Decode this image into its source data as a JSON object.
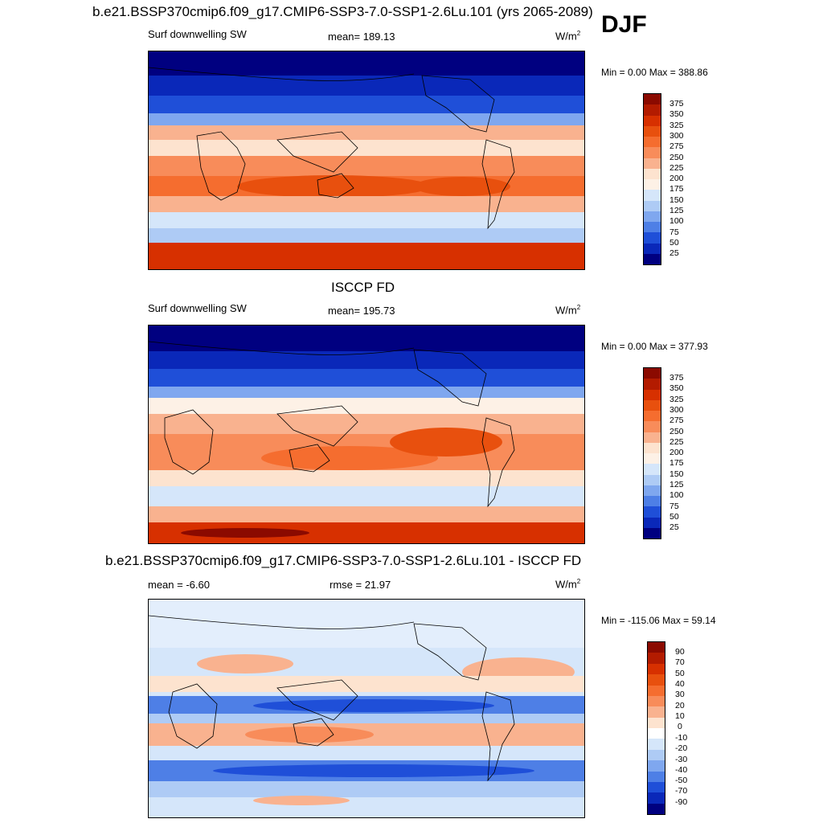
{
  "season": "DJF",
  "panels": [
    {
      "title": "b.e21.BSSP370cmip6.f09_g17.CMIP6-SSP3-7.0-SSP1-2.6Lu.101 (yrs 2065-2089)",
      "left_label": "Surf downwelling SW",
      "center_label": "mean= 189.13",
      "units": "W/m",
      "units_sup": "2",
      "minmax": "Min =   0.00 Max = 388.86",
      "colorbar": {
        "labels": [
          "375",
          "350",
          "325",
          "300",
          "275",
          "250",
          "225",
          "200",
          "175",
          "150",
          "125",
          "100",
          "75",
          "50",
          "25"
        ],
        "colors": [
          "#8b0a00",
          "#b31b00",
          "#d73000",
          "#e8500e",
          "#f56d2f",
          "#f88c5a",
          "#f9b28f",
          "#fde3cf",
          "#fdf1e6",
          "#d5e6fa",
          "#aecbf5",
          "#7fa7ef",
          "#4e7fe6",
          "#1f4fd8",
          "#0a28b9",
          "#000080"
        ]
      }
    },
    {
      "title": "ISCCP FD",
      "left_label": "Surf downwelling SW",
      "center_label": "mean= 195.73",
      "units": "W/m",
      "units_sup": "2",
      "minmax": "Min =   0.00 Max = 377.93",
      "colorbar": {
        "labels": [
          "375",
          "350",
          "325",
          "300",
          "275",
          "250",
          "225",
          "200",
          "175",
          "150",
          "125",
          "100",
          "75",
          "50",
          "25"
        ],
        "colors": [
          "#8b0a00",
          "#b31b00",
          "#d73000",
          "#e8500e",
          "#f56d2f",
          "#f88c5a",
          "#f9b28f",
          "#fde3cf",
          "#fdf1e6",
          "#d5e6fa",
          "#aecbf5",
          "#7fa7ef",
          "#4e7fe6",
          "#1f4fd8",
          "#0a28b9",
          "#000080"
        ]
      }
    },
    {
      "title": "b.e21.BSSP370cmip6.f09_g17.CMIP6-SSP3-7.0-SSP1-2.6Lu.101 - ISCCP FD",
      "left_label": "mean =  -6.60",
      "center_label": "rmse =  21.97",
      "units": "W/m",
      "units_sup": "2",
      "minmax": "Min = -115.06 Max =  59.14",
      "colorbar": {
        "labels": [
          "90",
          "70",
          "50",
          "40",
          "30",
          "20",
          "10",
          "0",
          "-10",
          "-20",
          "-30",
          "-40",
          "-50",
          "-70",
          "-90"
        ],
        "colors": [
          "#8b0a00",
          "#b31b00",
          "#d73000",
          "#e8500e",
          "#f56d2f",
          "#f88c5a",
          "#f9b28f",
          "#fde3cf",
          "#ffffff",
          "#d5e6fa",
          "#aecbf5",
          "#7fa7ef",
          "#4e7fe6",
          "#1f4fd8",
          "#0a28b9",
          "#000080"
        ]
      }
    }
  ]
}
